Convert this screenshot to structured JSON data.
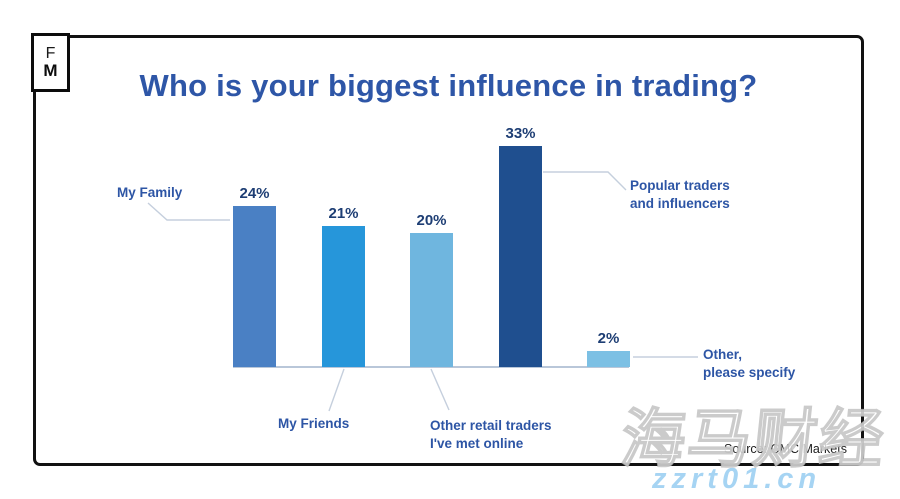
{
  "logo": {
    "letter1": "F",
    "letter2": "M"
  },
  "source_text": "Source: CMC Markets",
  "watermark": {
    "cjk": "海马财经",
    "url": "zzrt01.cn"
  },
  "callouts": {
    "family": [
      "My Family"
    ],
    "friends": [
      "My Friends"
    ],
    "retail": [
      "Other retail traders",
      "I've met online"
    ],
    "popular": [
      "Popular traders",
      "and influencers"
    ],
    "other": [
      "Other,",
      "please specify"
    ]
  },
  "chart_data": {
    "type": "bar",
    "title": "Who is your biggest influence in trading?",
    "categories": [
      "My Family",
      "My Friends",
      "Other retail traders I've met online",
      "Popular traders and influencers",
      "Other, please specify"
    ],
    "values": [
      24,
      21,
      20,
      33,
      2
    ],
    "value_labels": [
      "24%",
      "21%",
      "20%",
      "33%",
      "2%"
    ],
    "bar_colors": [
      "#4a80c4",
      "#2696da",
      "#6fb6df",
      "#1f4f8f",
      "#7cc0e4"
    ],
    "unit": "%",
    "ylim": [
      0,
      33
    ],
    "grid": false,
    "legend": false,
    "xlabel": "",
    "ylabel": "",
    "source": "CMC Markets"
  },
  "colors": {
    "title": "#2e56a7",
    "callout_label": "#2d55a5",
    "value_label": "#1e3e74",
    "axis_line": "#b9c7d9",
    "leader_line": "#c5cfdd",
    "frame_border": "#111111",
    "watermark_url": "#a6d4f3"
  }
}
